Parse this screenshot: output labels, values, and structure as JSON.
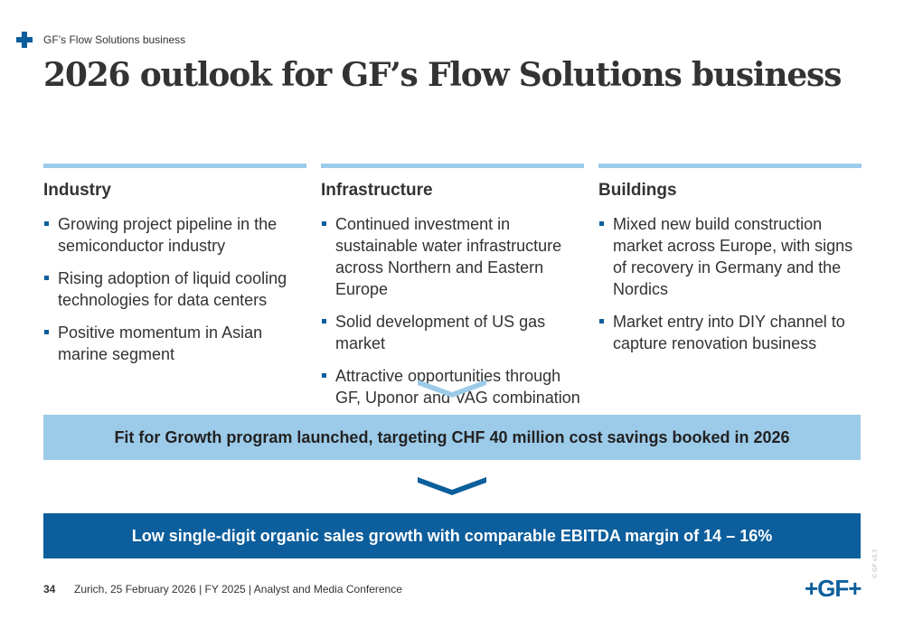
{
  "header": {
    "section": "GF’s Flow Solutions business",
    "title": "2026 outlook for GF’s Flow Solutions business"
  },
  "columns": [
    {
      "title": "Industry",
      "bullets": [
        "Growing project pipeline in the semiconductor industry",
        "Rising adoption of liquid cooling technologies for data centers",
        "Positive momentum in Asian marine segment"
      ]
    },
    {
      "title": "Infrastructure",
      "bullets": [
        "Continued investment in sustainable water infrastructure across Northern and Eastern Europe",
        "Solid development of US gas market",
        "Attractive opportunities through GF, Uponor and VAG combination"
      ]
    },
    {
      "title": "Buildings",
      "bullets": [
        "Mixed new build construction market across Europe, with signs of recovery in Germany and the Nordics",
        "Market entry into DIY channel to capture renovation business"
      ]
    }
  ],
  "banners": [
    "Fit for Growth program launched, targeting CHF 40 million cost savings booked in 2026",
    "Low single-digit organic sales growth with comparable EBITDA margin of 14 – 16%"
  ],
  "footer": {
    "page": "34",
    "text": "Zurich, 25 February 2026 | FY 2025 | Analyst and Media Conference",
    "logo": "+GF+",
    "version": "© GF v3.3"
  }
}
